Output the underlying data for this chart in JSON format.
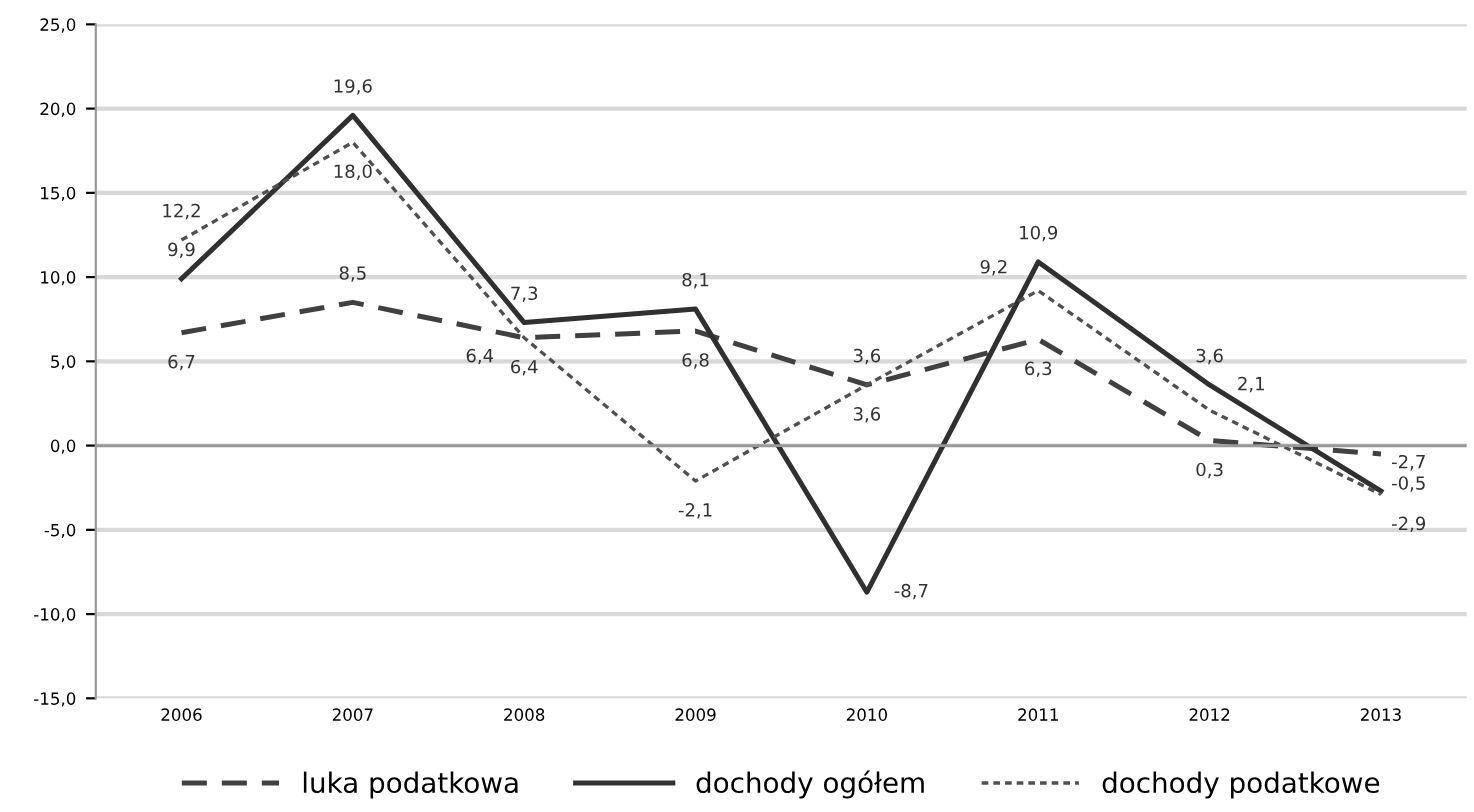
{
  "chart_data": {
    "type": "line",
    "categories": [
      "2006",
      "2007",
      "2008",
      "2009",
      "2010",
      "2011",
      "2012",
      "2013"
    ],
    "series": [
      {
        "name": "luka podatkowa",
        "color": "#404040",
        "line_style": "dashed",
        "values": [
          6.7,
          8.5,
          6.4,
          6.8,
          3.6,
          6.3,
          0.3,
          -0.5
        ],
        "value_labels": [
          "6,7",
          "8,5",
          "6,4",
          "6,8",
          "3,6",
          "6,3",
          "0,3",
          "-0,5"
        ]
      },
      {
        "name": "dochody ogółem",
        "color": "#303030",
        "line_style": "solid",
        "values": [
          9.9,
          19.6,
          7.3,
          8.1,
          -8.7,
          10.9,
          3.6,
          -2.7
        ],
        "value_labels": [
          "9,9",
          "19,6",
          "7,3",
          "8,1",
          "-8,7",
          "10,9",
          "3,6",
          "-2,7"
        ]
      },
      {
        "name": "dochody podatkowe",
        "color": "#505050",
        "line_style": "dotted",
        "values": [
          12.2,
          18.0,
          6.4,
          -2.1,
          3.6,
          9.2,
          2.1,
          -2.9
        ],
        "value_labels": [
          "12,2",
          "18,0",
          "6,4",
          "-2,1",
          "3,6",
          "9,2",
          "2,1",
          "-2,9"
        ]
      }
    ],
    "ylim": [
      -15,
      25
    ],
    "yticks": [
      {
        "value": 25,
        "label": "25,0"
      },
      {
        "value": 20,
        "label": "20,0"
      },
      {
        "value": 15,
        "label": "15,0"
      },
      {
        "value": 10,
        "label": "10,0"
      },
      {
        "value": 5,
        "label": "5,0"
      },
      {
        "value": 0,
        "label": "0,0"
      },
      {
        "value": -5,
        "label": "-5,0"
      },
      {
        "value": -10,
        "label": "-10,0"
      },
      {
        "value": -15,
        "label": "-15,0"
      }
    ],
    "grid": "y",
    "legend": "bottom",
    "marker": "none"
  }
}
